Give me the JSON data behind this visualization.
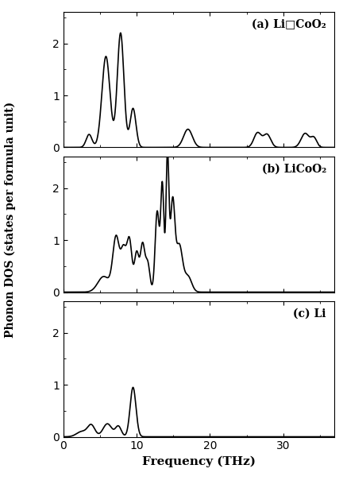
{
  "title_a": "(a) Li□CoO₂",
  "title_b": "(b) LiCoO₂",
  "title_c": "(c) Li",
  "ylabel": "Phonon DOS (states per formula unit)",
  "xlabel": "Frequency (THz)",
  "xlim": [
    0,
    37
  ],
  "xticks": [
    0,
    10,
    20,
    30
  ],
  "ylim_a": [
    0,
    2.6
  ],
  "ylim_b": [
    0,
    2.6
  ],
  "ylim_c": [
    0,
    2.6
  ],
  "yticks": [
    0,
    1,
    2
  ],
  "line_color": "#000000",
  "bg_color": "#ffffff",
  "figsize": [
    4.32,
    6.14
  ],
  "dpi": 100
}
